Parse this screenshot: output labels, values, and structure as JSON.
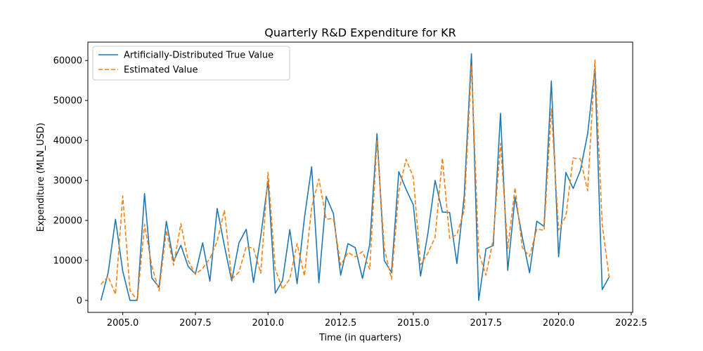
{
  "chart_data": {
    "type": "line",
    "title": "Quarterly R&D Expenditure for KR",
    "xlabel": "Time (in quarters)",
    "ylabel": "Expenditure (MLN_USD)",
    "xlim": [
      2003.8,
      2022.55
    ],
    "ylim": [
      -3000,
      64600
    ],
    "x_ticks": [
      2005.0,
      2007.5,
      2010.0,
      2012.5,
      2015.0,
      2017.5,
      2020.0,
      2022.5
    ],
    "x_tick_labels": [
      "2005.0",
      "2007.5",
      "2010.0",
      "2012.5",
      "2015.0",
      "2017.5",
      "2020.0",
      "2022.5"
    ],
    "y_ticks": [
      0,
      10000,
      20000,
      30000,
      40000,
      50000,
      60000
    ],
    "y_tick_labels": [
      "0",
      "10000",
      "20000",
      "30000",
      "40000",
      "50000",
      "60000"
    ],
    "grid": false,
    "legend_position": "top-left",
    "x_start": 2004.25,
    "x_step": 0.25,
    "series": [
      {
        "name": "Artificially-Distributed True Value",
        "color": "#1f77b4",
        "dash": "solid",
        "values": [
          0,
          7000,
          20300,
          7300,
          0,
          0,
          26700,
          5600,
          3300,
          19800,
          9800,
          13800,
          8500,
          6600,
          14400,
          4800,
          23000,
          13600,
          4900,
          14400,
          17800,
          4500,
          16000,
          29900,
          1800,
          5000,
          17700,
          4200,
          20500,
          33400,
          4400,
          26000,
          21700,
          6300,
          14200,
          13200,
          5500,
          14000,
          41700,
          10000,
          7000,
          32200,
          27800,
          23900,
          6100,
          16700,
          30000,
          22100,
          22000,
          9200,
          26000,
          61700,
          0,
          12900,
          13700,
          46800,
          7500,
          25800,
          15800,
          6900,
          19800,
          18500,
          54900,
          10900,
          32000,
          28000,
          32500,
          41700,
          58000,
          2700,
          6000
        ]
      },
      {
        "name": "Estimated Value",
        "color": "#ff7f0e",
        "dash": "dashed",
        "values": [
          4000,
          6000,
          1500,
          26100,
          2500,
          0,
          19000,
          8600,
          2400,
          17500,
          8800,
          19200,
          10000,
          6500,
          8000,
          10500,
          14800,
          22600,
          5300,
          7100,
          13500,
          13000,
          6800,
          32000,
          7800,
          2800,
          5400,
          14200,
          6100,
          23200,
          30400,
          20300,
          20500,
          8800,
          12000,
          10900,
          12200,
          7800,
          40000,
          13100,
          5300,
          27300,
          35300,
          30800,
          8900,
          11800,
          15800,
          35600,
          15500,
          16500,
          22500,
          58900,
          12000,
          6300,
          15300,
          39300,
          13000,
          28200,
          13200,
          11000,
          17900,
          17500,
          47900,
          17600,
          21100,
          35600,
          35400,
          27400,
          60100,
          19000,
          5200
        ]
      }
    ]
  }
}
